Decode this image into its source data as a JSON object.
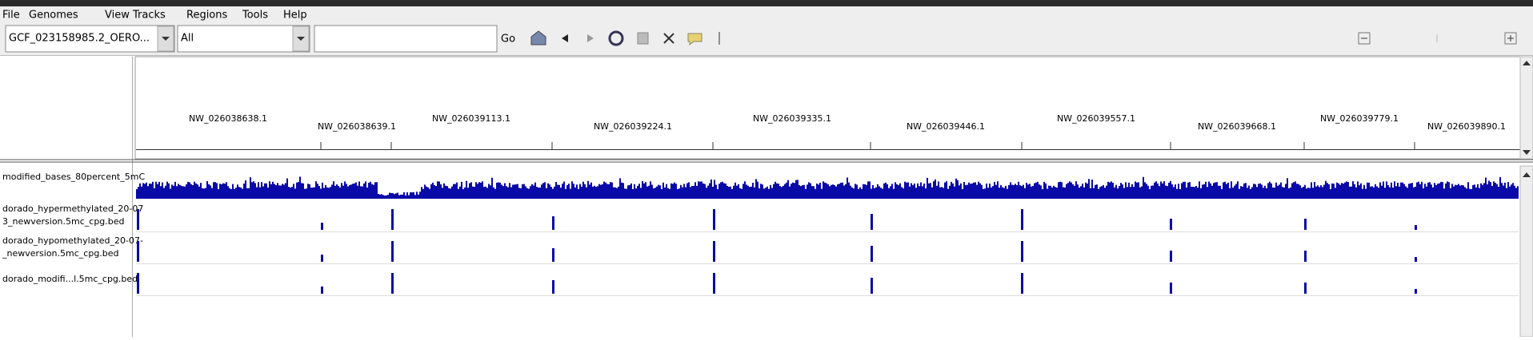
{
  "menu": [
    "File",
    "Genomes",
    "View",
    "Tracks",
    "Regions",
    "Tools",
    "Help"
  ],
  "toolbar": {
    "genome": "GCF_023158985.2_OERO...",
    "chromosome": "All",
    "go": "Go"
  },
  "ruler": {
    "labels": [
      "NW_026038638.1",
      "NW_026038639.1",
      "NW_026039113.1",
      "NW_026039224.1",
      "NW_026039335.1",
      "NW_026039446.1",
      "NW_026039557.1",
      "NW_026039668.1",
      "NW_026039779.1",
      "NW_026039890.1"
    ]
  },
  "tracks": [
    {
      "name": [
        "modified_bases_80percent_5mC"
      ]
    },
    {
      "name": [
        "dorado_hypermethylated_20-07",
        "3_newversion.5mc_cpg.bed"
      ]
    },
    {
      "name": [
        "dorado_hypomethylated_20-07-",
        "_newversion.5mc_cpg.bed"
      ]
    },
    {
      "name": [
        "dorado_modifi...l.5mc_cpg.bed"
      ]
    }
  ]
}
